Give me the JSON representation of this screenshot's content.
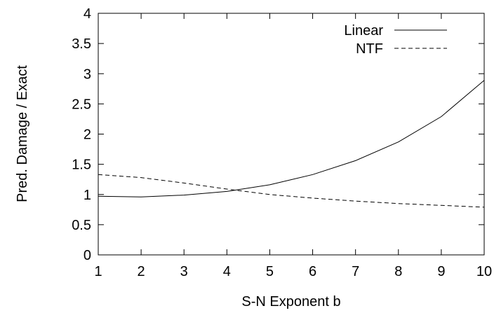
{
  "chart_data": {
    "type": "line",
    "xlabel": "S-N Exponent b",
    "ylabel": "Pred. Damage / Exact",
    "xlim": [
      1,
      10
    ],
    "ylim": [
      0,
      4
    ],
    "x_ticks": [
      "1",
      "2",
      "3",
      "4",
      "5",
      "6",
      "7",
      "8",
      "9",
      "10"
    ],
    "y_ticks": [
      "0",
      "0.5",
      "1",
      "1.5",
      "2",
      "2.5",
      "3",
      "3.5",
      "4"
    ],
    "grid": false,
    "legend_position": "top-right",
    "x": [
      1,
      2,
      3,
      4,
      5,
      6,
      7,
      8,
      9,
      10
    ],
    "series": [
      {
        "name": "Linear",
        "style": "solid",
        "values": [
          0.97,
          0.96,
          0.99,
          1.05,
          1.16,
          1.33,
          1.56,
          1.87,
          2.29,
          2.89
        ]
      },
      {
        "name": "NTF",
        "style": "dashed",
        "values": [
          1.33,
          1.28,
          1.19,
          1.09,
          1.0,
          0.94,
          0.89,
          0.85,
          0.82,
          0.79
        ]
      }
    ]
  }
}
